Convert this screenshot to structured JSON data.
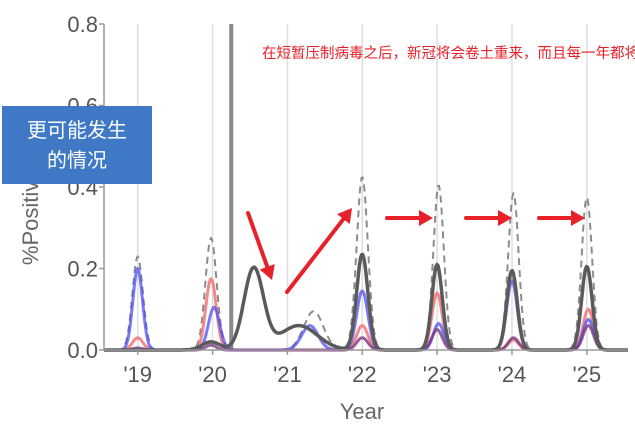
{
  "chart_data": {
    "type": "line",
    "xlabel": "Year",
    "ylabel": "%Positive × ILI",
    "ylim": [
      0,
      0.8
    ],
    "xlim": [
      2018.55,
      2025.55
    ],
    "y_ticks": [
      0.0,
      0.2,
      0.4,
      0.6,
      0.8
    ],
    "y_tick_labels": [
      "0.0",
      "0.2",
      "0.4",
      "0.6",
      "0.8"
    ],
    "x_ticks": [
      2019,
      2020,
      2021,
      2022,
      2023,
      2024,
      2025
    ],
    "x_tick_labels": [
      "'19",
      "'20",
      "'21",
      "'22",
      "'23",
      "'24",
      "'25"
    ],
    "grid": "vertical lines at x ticks",
    "intervention_line_x": 2020.25,
    "annotation": "在短暂压制病毒之后，新冠将会卷土重来，而且每一年都将如约而至爆发",
    "box_label_lines": [
      "更可能发生",
      "的情况"
    ],
    "colors": {
      "dashed": "#8c8c8c",
      "black": "#5a5a5a",
      "blue": "#4d4df0",
      "red": "#f07575",
      "purple": "#7a3a80",
      "arrow": "#e8202a",
      "box": "#3f78c4"
    },
    "series": [
      {
        "style": "dashed",
        "peaks": [
          [
            2019.0,
            0.23,
            0.07
          ],
          [
            2019.98,
            0.275,
            0.075
          ],
          [
            2021.35,
            0.095,
            0.13
          ],
          [
            2022.0,
            0.425,
            0.075
          ],
          [
            2023.02,
            0.405,
            0.07
          ],
          [
            2024.02,
            0.385,
            0.07
          ],
          [
            2025.0,
            0.375,
            0.07
          ]
        ]
      },
      {
        "style": "black",
        "peaks": [
          [
            2019.98,
            0.02,
            0.12
          ],
          [
            2020.55,
            0.2,
            0.13
          ],
          [
            2021.15,
            0.06,
            0.25
          ],
          [
            2022.0,
            0.235,
            0.075
          ],
          [
            2023.0,
            0.21,
            0.07
          ],
          [
            2024.0,
            0.195,
            0.07
          ],
          [
            2025.0,
            0.205,
            0.07
          ]
        ]
      },
      {
        "style": "blue",
        "peaks": [
          [
            2019.0,
            0.2,
            0.065
          ],
          [
            2020.02,
            0.105,
            0.075
          ],
          [
            2021.3,
            0.06,
            0.11
          ],
          [
            2022.0,
            0.145,
            0.075
          ],
          [
            2023.02,
            0.065,
            0.07
          ],
          [
            2024.0,
            0.17,
            0.07
          ],
          [
            2025.02,
            0.075,
            0.07
          ]
        ]
      },
      {
        "style": "red",
        "peaks": [
          [
            2019.0,
            0.03,
            0.07
          ],
          [
            2019.98,
            0.175,
            0.07
          ],
          [
            2022.0,
            0.06,
            0.075
          ],
          [
            2023.0,
            0.14,
            0.07
          ],
          [
            2024.02,
            0.025,
            0.07
          ],
          [
            2025.02,
            0.1,
            0.07
          ]
        ]
      },
      {
        "style": "purple",
        "peaks": [
          [
            2019.0,
            0.005,
            0.07
          ],
          [
            2019.98,
            0.012,
            0.07
          ],
          [
            2022.0,
            0.03,
            0.075
          ],
          [
            2023.0,
            0.05,
            0.07
          ],
          [
            2024.02,
            0.03,
            0.07
          ],
          [
            2025.02,
            0.06,
            0.07
          ]
        ]
      }
    ]
  }
}
